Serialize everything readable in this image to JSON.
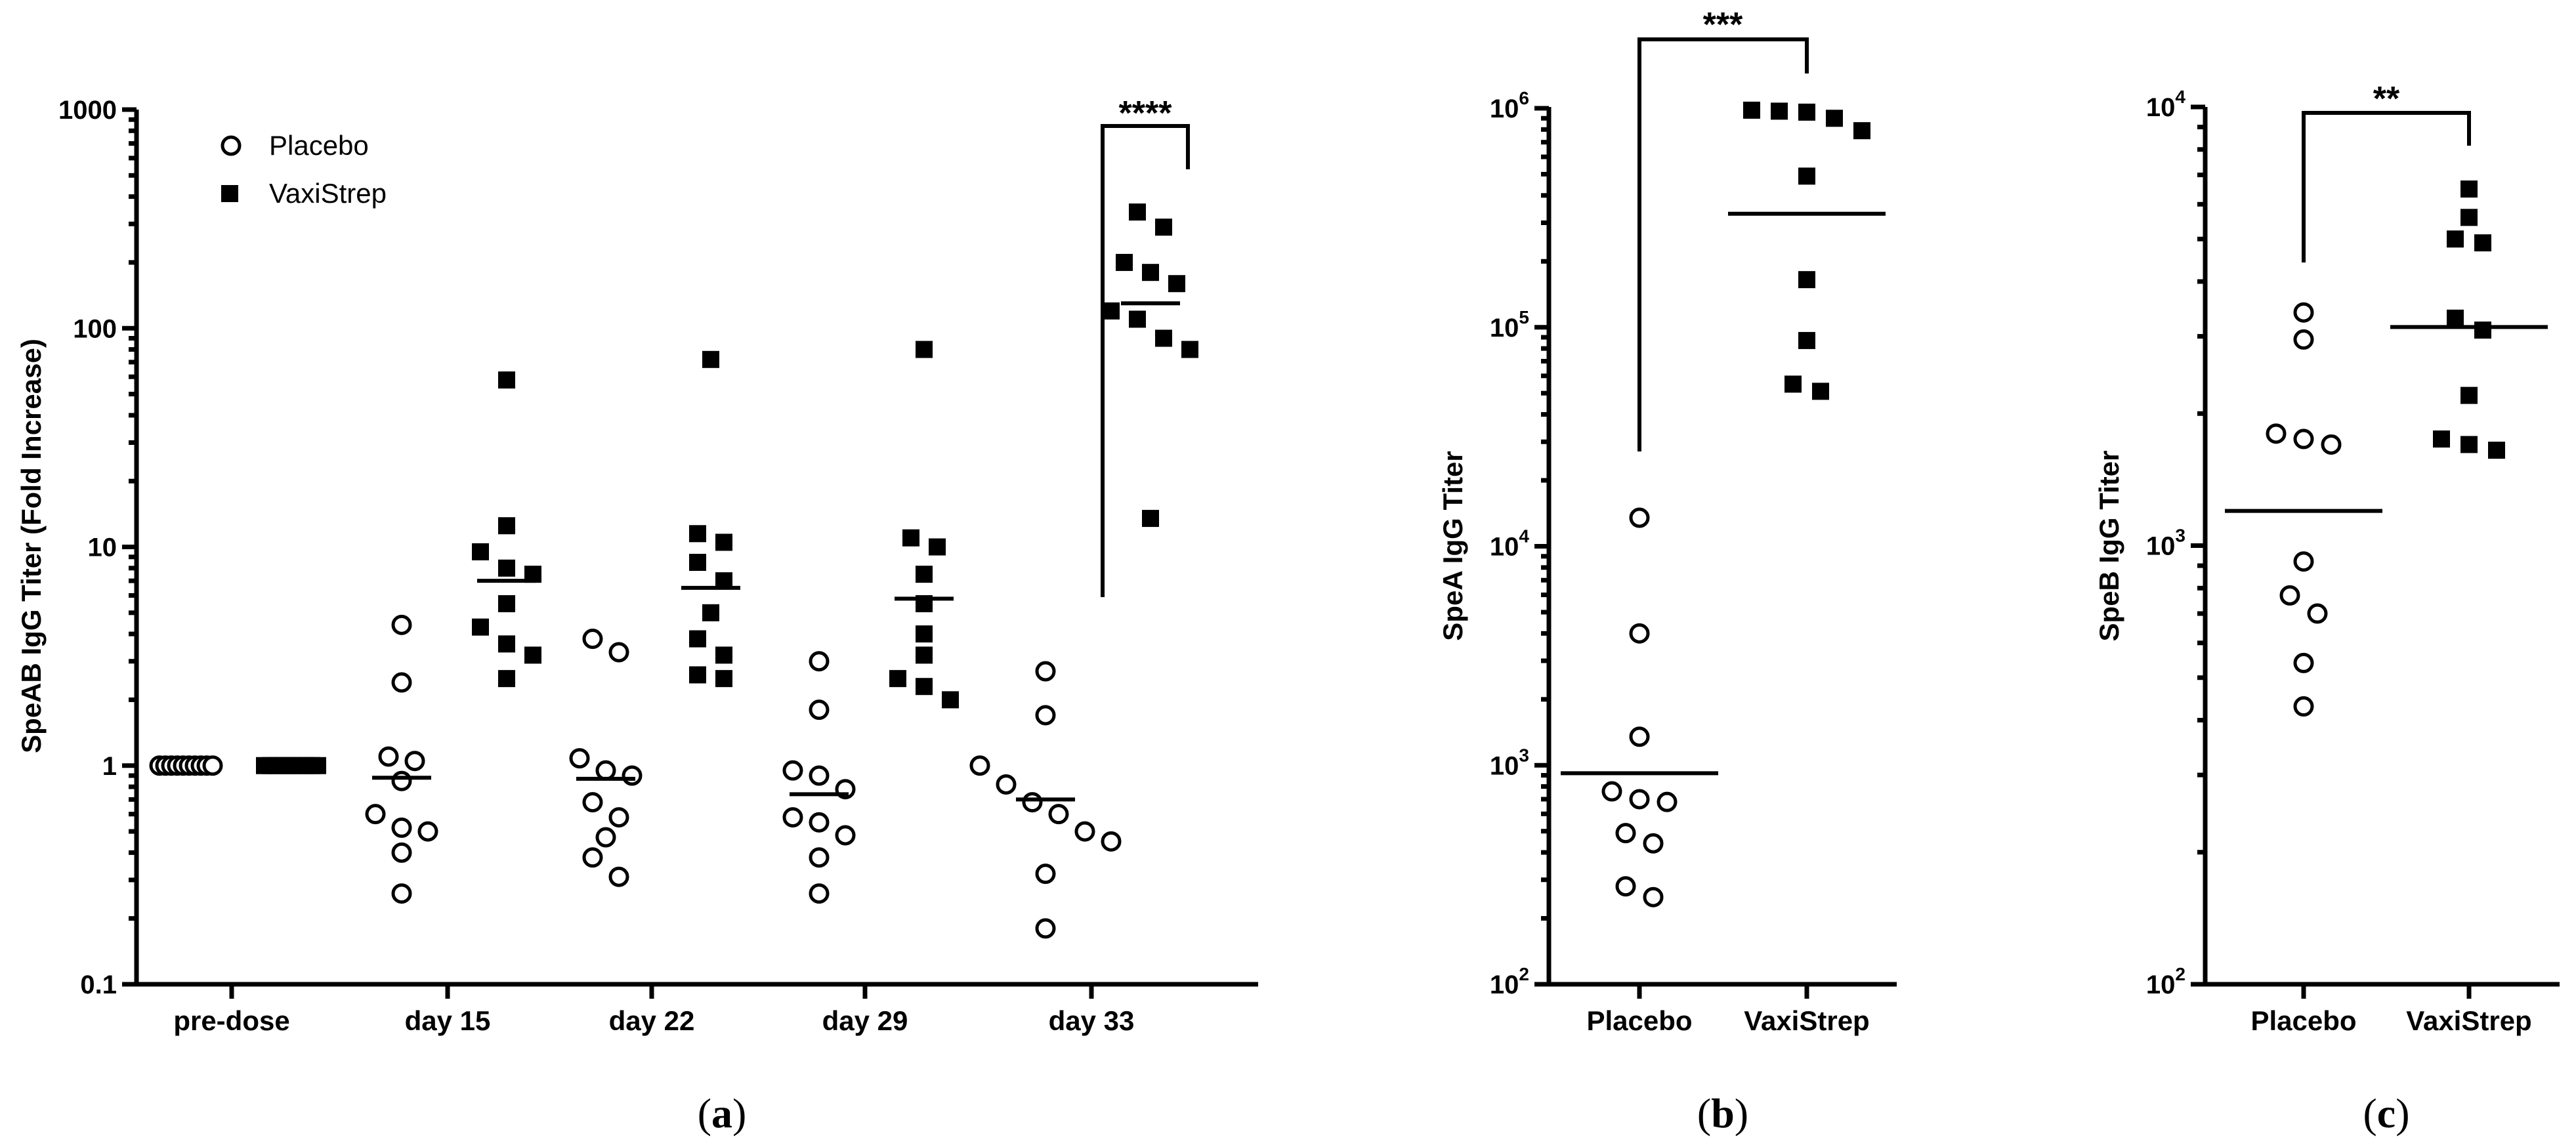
{
  "chart_data": [
    {
      "panel": "a",
      "type": "scatter",
      "ylabel": "SpeAB IgG Titer (Fold Increase)",
      "yscale": "log",
      "ylim": [
        0.1,
        1000
      ],
      "yticks": [
        "0.1",
        "1",
        "10",
        "100",
        "1000"
      ],
      "categories": [
        "pre-dose",
        "day 15",
        "day 22",
        "day 29",
        "day 33"
      ],
      "legend": [
        {
          "name": "Placebo",
          "marker": "open-circle"
        },
        {
          "name": "VaxiStrep",
          "marker": "filled-square"
        }
      ],
      "series": [
        {
          "name": "Placebo",
          "groups": [
            {
              "values": [
                1,
                1,
                1,
                1,
                1,
                1,
                1,
                1,
                1,
                1
              ],
              "mean": 1
            },
            {
              "values": [
                4.4,
                2.4,
                1.1,
                1.05,
                0.85,
                0.6,
                0.52,
                0.5,
                0.4,
                0.26
              ],
              "mean": 0.88
            },
            {
              "values": [
                3.8,
                3.3,
                1.08,
                0.95,
                0.9,
                0.68,
                0.58,
                0.47,
                0.38,
                0.31
              ],
              "mean": 0.87
            },
            {
              "values": [
                3.0,
                1.8,
                0.95,
                0.9,
                0.78,
                0.58,
                0.55,
                0.48,
                0.38,
                0.26
              ],
              "mean": 0.74
            },
            {
              "values": [
                2.7,
                1.7,
                1.0,
                0.82,
                0.68,
                0.6,
                0.5,
                0.45,
                0.32,
                0.18
              ],
              "mean": 0.7
            }
          ]
        },
        {
          "name": "VaxiStrep",
          "groups": [
            {
              "values": [
                1,
                1,
                1,
                1,
                1,
                1,
                1,
                1,
                1,
                1
              ],
              "mean": 1
            },
            {
              "values": [
                58,
                12.5,
                9.5,
                8,
                7.5,
                5.5,
                4.3,
                3.6,
                3.2,
                2.5
              ],
              "mean": 7.0
            },
            {
              "values": [
                72,
                11.5,
                10.5,
                8.5,
                7,
                5,
                3.8,
                3.2,
                2.6,
                2.5
              ],
              "mean": 6.5
            },
            {
              "values": [
                80,
                11,
                10,
                7.5,
                5.5,
                4,
                3.2,
                2.5,
                2.3,
                2.0
              ],
              "mean": 5.8
            },
            {
              "values": [
                340,
                290,
                200,
                180,
                160,
                120,
                110,
                90,
                80,
                13.5
              ],
              "mean": 130
            }
          ]
        }
      ],
      "annotations": [
        {
          "text": "****",
          "between": [
            "day 33 Placebo",
            "day 33 VaxiStrep"
          ]
        }
      ],
      "panel_label": "a"
    },
    {
      "panel": "b",
      "type": "scatter",
      "ylabel": "SpeA IgG Titer",
      "yscale": "log",
      "ylim": [
        100,
        1000000
      ],
      "yticks": [
        {
          "base": "10",
          "exp": "2"
        },
        {
          "base": "10",
          "exp": "3"
        },
        {
          "base": "10",
          "exp": "4"
        },
        {
          "base": "10",
          "exp": "5"
        },
        {
          "base": "10",
          "exp": "6"
        }
      ],
      "categories": [
        "Placebo",
        "VaxiStrep"
      ],
      "series": [
        {
          "name": "Placebo",
          "marker": "open-circle",
          "values": [
            13500,
            4000,
            1350,
            760,
            700,
            680,
            490,
            440,
            280,
            250
          ],
          "mean": 920
        },
        {
          "name": "VaxiStrep",
          "marker": "filled-square",
          "values": [
            980000,
            970000,
            960000,
            900000,
            790000,
            490000,
            165000,
            87000,
            55000,
            51000
          ],
          "mean": 330000
        }
      ],
      "annotations": [
        {
          "text": "***",
          "between": [
            "Placebo",
            "VaxiStrep"
          ]
        }
      ],
      "panel_label": "b"
    },
    {
      "panel": "c",
      "type": "scatter",
      "ylabel": "SpeB IgG Titer",
      "yscale": "log",
      "ylim": [
        100,
        10000
      ],
      "yticks": [
        {
          "base": "10",
          "exp": "2"
        },
        {
          "base": "10",
          "exp": "3"
        },
        {
          "base": "10",
          "exp": "4"
        }
      ],
      "categories": [
        "Placebo",
        "VaxiStrep"
      ],
      "series": [
        {
          "name": "Placebo",
          "marker": "open-circle",
          "values": [
            3400,
            2950,
            1800,
            1750,
            1700,
            920,
            770,
            700,
            540,
            430
          ],
          "mean": 1200
        },
        {
          "name": "VaxiStrep",
          "marker": "filled-square",
          "values": [
            6500,
            5600,
            5000,
            4900,
            3300,
            3100,
            2200,
            1750,
            1700,
            1650
          ],
          "mean": 3150
        }
      ],
      "annotations": [
        {
          "text": "**",
          "between": [
            "Placebo",
            "VaxiStrep"
          ]
        }
      ],
      "panel_label": "c"
    }
  ]
}
